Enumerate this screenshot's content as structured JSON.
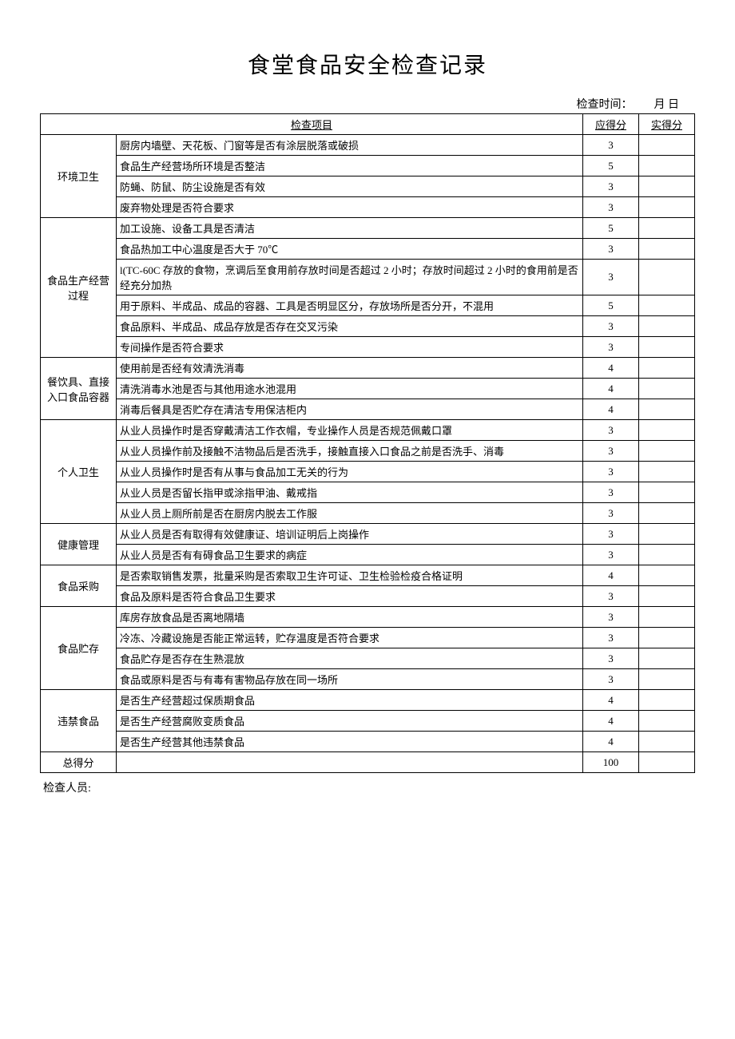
{
  "doc": {
    "title": "食堂食品安全检查记录",
    "meta_label": "检查时间：",
    "meta_month": "月",
    "meta_day": "日",
    "inspector_label": "检查人员:",
    "header_item": "检查项目",
    "header_score": "应得分",
    "header_actual": "实得分",
    "total_label": "总得分",
    "total_score": "100"
  },
  "sections": [
    {
      "cat": "环境卫生",
      "rows": [
        {
          "item": "厨房内墙壁、天花板、门窗等是否有涂层脱落或破损",
          "score": "3"
        },
        {
          "item": "食品生产经营场所环境是否整洁",
          "score": "5"
        },
        {
          "item": "防蝇、防鼠、防尘设施是否有效",
          "score": "3"
        },
        {
          "item": "废弃物处理是否符合要求",
          "score": "3"
        }
      ]
    },
    {
      "cat": "食品生产经营过程",
      "rows": [
        {
          "item": "加工设施、设备工具是否清洁",
          "score": "5"
        },
        {
          "item": "食品热加工中心温度是否大于 70℃",
          "score": "3"
        },
        {
          "item": "l(TC-60C 存放的食物，烹调后至食用前存放时间是否超过 2 小时；存放时间超过 2 小时的食用前是否经充分加热",
          "score": "3"
        },
        {
          "item": "用于原料、半成品、成品的容器、工具是否明显区分，存放场所是否分开，不混用",
          "score": "5"
        },
        {
          "item": "食品原料、半成品、成品存放是否存在交叉污染",
          "score": "3"
        },
        {
          "item": "专间操作是否符合要求",
          "score": "3"
        }
      ]
    },
    {
      "cat": "餐饮具、直接入口食品容器",
      "rows": [
        {
          "item": "使用前是否经有效清洗消毒",
          "score": "4"
        },
        {
          "item": "清洗消毒水池是否与其他用途水池混用",
          "score": "4"
        },
        {
          "item": "消毒后餐具是否贮存在清洁专用保洁柜内",
          "score": "4"
        }
      ]
    },
    {
      "cat": "个人卫生",
      "rows": [
        {
          "item": "从业人员操作时是否穿戴清洁工作衣帽，专业操作人员是否规范佩戴口罩",
          "score": "3"
        },
        {
          "item": "从业人员操作前及接触不洁物品后是否洗手，接触直接入口食品之前是否洗手、消毒",
          "score": "3"
        },
        {
          "item": "从业人员操作时是否有从事与食品加工无关的行为",
          "score": "3"
        },
        {
          "item": "从业人员是否留长指甲或涂指甲油、戴戒指",
          "score": "3"
        },
        {
          "item": "从业人员上厕所前是否在厨房内脱去工作服",
          "score": "3"
        }
      ]
    },
    {
      "cat": "健康管理",
      "rows": [
        {
          "item": "从业人员是否有取得有效健康证、培训证明后上岗操作",
          "score": "3"
        },
        {
          "item": "从业人员是否有有碍食品卫生要求的病症",
          "score": "3"
        }
      ]
    },
    {
      "cat": "食品采购",
      "rows": [
        {
          "item": "是否索取销售发票，批量采购是否索取卫生许可证、卫生检验检疫合格证明",
          "score": "4"
        },
        {
          "item": "食品及原料是否符合食品卫生要求",
          "score": "3"
        }
      ]
    },
    {
      "cat": "食品贮存",
      "rows": [
        {
          "item": "库房存放食品是否离地隔墙",
          "score": "3"
        },
        {
          "item": "冷冻、冷藏设施是否能正常运转，贮存温度是否符合要求",
          "score": "3"
        },
        {
          "item": "食品贮存是否存在生熟混放",
          "score": "3"
        },
        {
          "item": "食品或原料是否与有毒有害物品存放在同一场所",
          "score": "3"
        }
      ]
    },
    {
      "cat": "违禁食品",
      "rows": [
        {
          "item": "是否生产经营超过保质期食品",
          "score": "4"
        },
        {
          "item": "是否生产经营腐败变质食品",
          "score": "4"
        },
        {
          "item": "是否生产经营其他违禁食品",
          "score": "4"
        }
      ]
    }
  ]
}
